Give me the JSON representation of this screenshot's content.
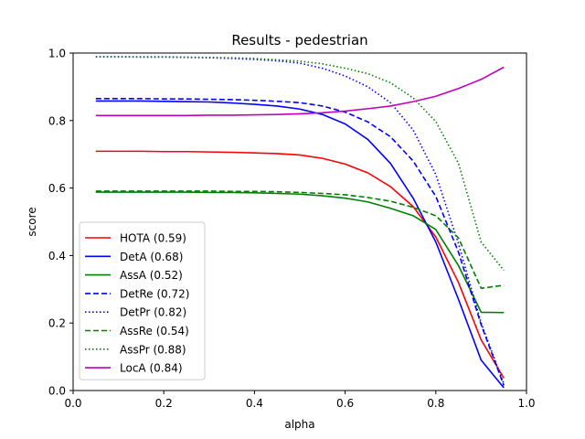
{
  "chart_data": {
    "type": "line",
    "title": "Results - pedestrian",
    "xlabel": "alpha",
    "ylabel": "score",
    "xlim": [
      0.0,
      1.0
    ],
    "ylim": [
      0.0,
      1.0
    ],
    "xticks": [
      "0.0",
      "0.2",
      "0.4",
      "0.6",
      "0.8",
      "1.0"
    ],
    "yticks": [
      "0.0",
      "0.2",
      "0.4",
      "0.6",
      "0.8",
      "1.0"
    ],
    "grid": false,
    "legend_position": "lower-left",
    "x": [
      0.05,
      0.1,
      0.15,
      0.2,
      0.25,
      0.3,
      0.35,
      0.4,
      0.45,
      0.5,
      0.55,
      0.6,
      0.65,
      0.7,
      0.75,
      0.8,
      0.85,
      0.9,
      0.95
    ],
    "series": [
      {
        "name": "HOTA (0.59)",
        "color": "#ff0000",
        "dash": "solid",
        "values": [
          0.709,
          0.709,
          0.709,
          0.708,
          0.708,
          0.707,
          0.706,
          0.704,
          0.702,
          0.698,
          0.688,
          0.671,
          0.645,
          0.604,
          0.545,
          0.455,
          0.32,
          0.15,
          0.037
        ]
      },
      {
        "name": "DetA (0.68)",
        "color": "#0000ff",
        "dash": "solid",
        "values": [
          0.858,
          0.858,
          0.858,
          0.857,
          0.856,
          0.855,
          0.852,
          0.848,
          0.843,
          0.834,
          0.818,
          0.79,
          0.744,
          0.673,
          0.57,
          0.44,
          0.27,
          0.09,
          0.008
        ]
      },
      {
        "name": "AssA (0.52)",
        "color": "#008000",
        "dash": "solid",
        "values": [
          0.588,
          0.588,
          0.588,
          0.588,
          0.588,
          0.587,
          0.587,
          0.586,
          0.584,
          0.582,
          0.577,
          0.57,
          0.559,
          0.54,
          0.518,
          0.477,
          0.37,
          0.232,
          0.231
        ]
      },
      {
        "name": "DetRe (0.72)",
        "color": "#0000ff",
        "dash": "dashed",
        "values": [
          0.865,
          0.865,
          0.865,
          0.864,
          0.864,
          0.863,
          0.862,
          0.86,
          0.857,
          0.853,
          0.843,
          0.825,
          0.796,
          0.752,
          0.68,
          0.575,
          0.41,
          0.195,
          0.015
        ]
      },
      {
        "name": "DetPr (0.82)",
        "color": "#0000ff",
        "dash": "dotted",
        "values": [
          0.989,
          0.989,
          0.988,
          0.988,
          0.987,
          0.986,
          0.984,
          0.981,
          0.977,
          0.97,
          0.955,
          0.932,
          0.9,
          0.853,
          0.772,
          0.64,
          0.435,
          0.2,
          0.02
        ]
      },
      {
        "name": "AssRe (0.54)",
        "color": "#008000",
        "dash": "dashed",
        "values": [
          0.591,
          0.591,
          0.591,
          0.591,
          0.591,
          0.591,
          0.59,
          0.59,
          0.589,
          0.587,
          0.584,
          0.58,
          0.572,
          0.561,
          0.543,
          0.518,
          0.452,
          0.303,
          0.312
        ]
      },
      {
        "name": "AssPr (0.88)",
        "color": "#008000",
        "dash": "dotted",
        "values": [
          0.989,
          0.989,
          0.989,
          0.989,
          0.988,
          0.987,
          0.986,
          0.984,
          0.98,
          0.976,
          0.968,
          0.955,
          0.939,
          0.912,
          0.867,
          0.797,
          0.673,
          0.44,
          0.356
        ]
      },
      {
        "name": "LocA (0.84)",
        "color": "#c000c0",
        "dash": "solid",
        "values": [
          0.815,
          0.815,
          0.815,
          0.815,
          0.815,
          0.816,
          0.816,
          0.817,
          0.818,
          0.82,
          0.823,
          0.828,
          0.835,
          0.843,
          0.856,
          0.872,
          0.895,
          0.922,
          0.958
        ]
      }
    ]
  }
}
